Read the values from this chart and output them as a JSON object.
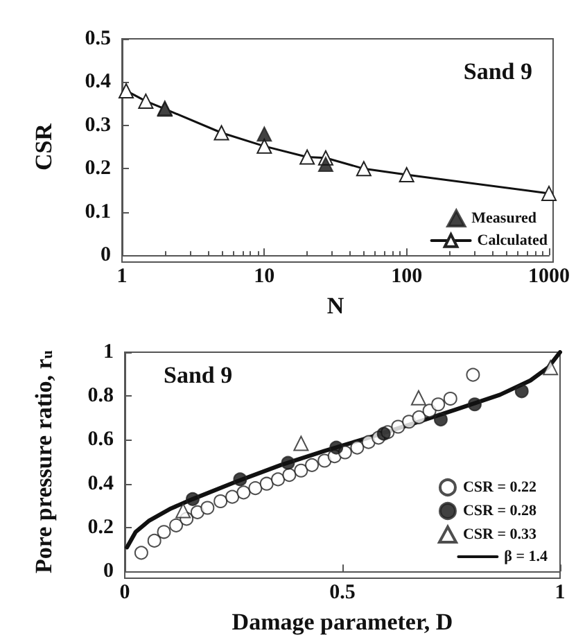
{
  "chart_data": [
    {
      "type": "scatter",
      "xlabel": "N",
      "ylabel": "CSR",
      "log": "x",
      "xlim": [
        1,
        1000
      ],
      "xticks": [
        1,
        10,
        100,
        1000
      ],
      "ylim": [
        0,
        0.5
      ],
      "yticks": [
        0,
        0.1,
        0.2,
        0.3,
        0.4,
        0.5
      ],
      "grid": false,
      "legend": "bottom right",
      "annotations": [
        "Sand 9"
      ],
      "series": [
        {
          "name": "Measured",
          "marker": "triangle",
          "color": "#111111",
          "x": [
            2,
            10,
            27
          ],
          "values": [
            0.34,
            0.28,
            0.21
          ]
        },
        {
          "name": "Calculated",
          "type": "line",
          "marker": "triangle",
          "color": "#ffffff",
          "x": [
            1.07,
            1.47,
            2,
            5,
            10,
            20,
            27,
            50,
            100,
            1000
          ],
          "values": [
            0.38,
            0.356,
            0.338,
            0.283,
            0.252,
            0.227,
            0.225,
            0.2,
            0.186,
            0.143
          ]
        }
      ]
    },
    {
      "type": "scatter",
      "xlabel": "Damage parameter, D",
      "ylabel": "Pore pressure ratio, r$_{u}$",
      "xlim": [
        0,
        1
      ],
      "xticks": [
        0,
        0.5,
        1
      ],
      "ylim": [
        0,
        1
      ],
      "yticks": [
        0,
        0.2,
        0.4,
        0.6,
        0.8,
        1
      ],
      "grid": false,
      "legend": "bottom right",
      "annotations": [
        "Sand 9"
      ],
      "series": [
        {
          "name": "CSR = 0.22",
          "marker": "circle",
          "color": "#ffffff",
          "x": [
            0.038,
            0.068,
            0.09,
            0.118,
            0.142,
            0.167,
            0.19,
            0.22,
            0.247,
            0.273,
            0.3,
            0.326,
            0.352,
            0.378,
            0.405,
            0.43,
            0.459,
            0.482,
            0.506,
            0.534,
            0.56,
            0.583,
            0.604,
            0.628,
            0.653,
            0.676,
            0.7,
            0.72,
            0.748,
            0.8
          ],
          "values": [
            0.085,
            0.14,
            0.18,
            0.21,
            0.24,
            0.27,
            0.29,
            0.32,
            0.34,
            0.36,
            0.38,
            0.4,
            0.42,
            0.44,
            0.46,
            0.485,
            0.505,
            0.525,
            0.543,
            0.565,
            0.59,
            0.61,
            0.635,
            0.66,
            0.683,
            0.703,
            0.733,
            0.762,
            0.788,
            0.897
          ]
        },
        {
          "name": "CSR = 0.28",
          "marker": "circle",
          "color": "#111111",
          "x": [
            0.156,
            0.265,
            0.375,
            0.486,
            0.595,
            0.726,
            0.804,
            0.912
          ],
          "values": [
            0.33,
            0.42,
            0.495,
            0.565,
            0.628,
            0.693,
            0.762,
            0.822
          ]
        },
        {
          "name": "CSR = 0.33",
          "marker": "triangle",
          "color": "#ffffff",
          "x": [
            0.134,
            0.405,
            0.675,
            0.978
          ],
          "values": [
            0.277,
            0.584,
            0.792,
            0.93
          ]
        },
        {
          "name": "β = 1.4",
          "type": "line",
          "marker": "none",
          "color": "#111111",
          "x": [
            0.005,
            0.025,
            0.055,
            0.106,
            0.156,
            0.257,
            0.358,
            0.459,
            0.56,
            0.66,
            0.761,
            0.862,
            0.932,
            0.973,
            1.0
          ],
          "values": [
            0.11,
            0.18,
            0.23,
            0.287,
            0.33,
            0.41,
            0.485,
            0.55,
            0.61,
            0.673,
            0.739,
            0.806,
            0.871,
            0.931,
            1.0
          ]
        }
      ]
    }
  ]
}
